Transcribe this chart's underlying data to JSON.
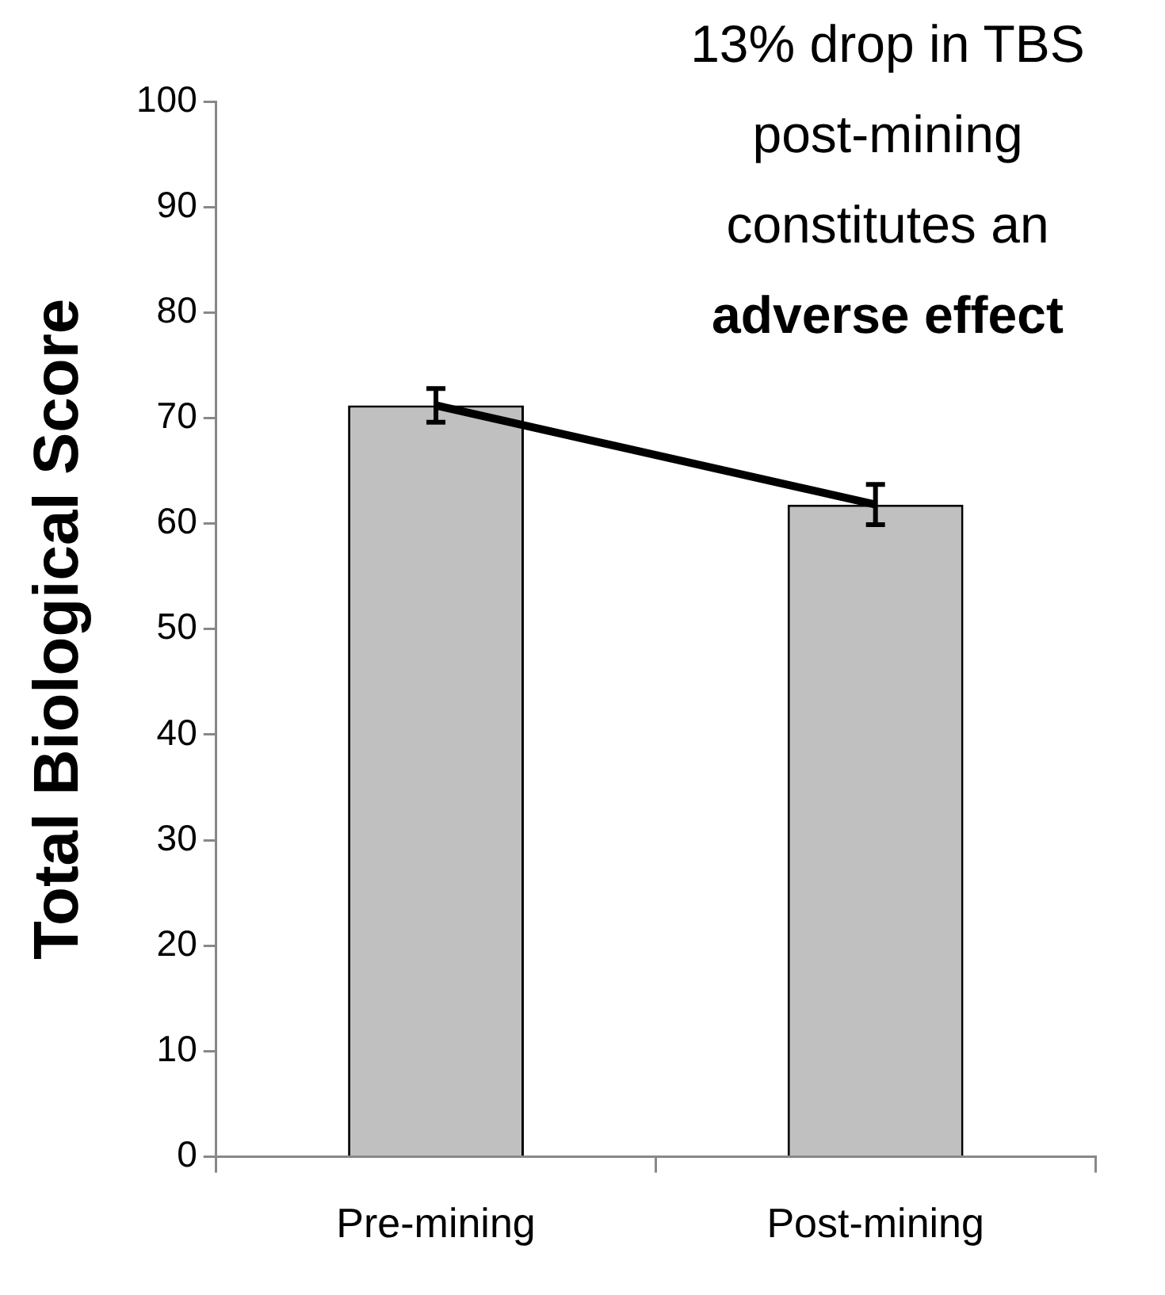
{
  "chart_data": {
    "type": "bar",
    "ylabel": "Total Biological Score",
    "categories": [
      "Pre-mining",
      "Post-mining"
    ],
    "series": [
      {
        "color": "#c0c0c0",
        "values": [
          71.2,
          61.8
        ],
        "errors": [
          1.6,
          1.9
        ]
      },
      {
        "type": "line",
        "color": "#000000",
        "values": [
          71.2,
          61.8
        ]
      }
    ],
    "ylim": [
      0,
      100
    ],
    "yticks": [
      0,
      10,
      20,
      30,
      40,
      50,
      60,
      70,
      80,
      90,
      100
    ],
    "grid": false,
    "legend": false,
    "annotations": [
      "13% drop in TBS post-mining constitutes an",
      "adverse effect"
    ]
  }
}
